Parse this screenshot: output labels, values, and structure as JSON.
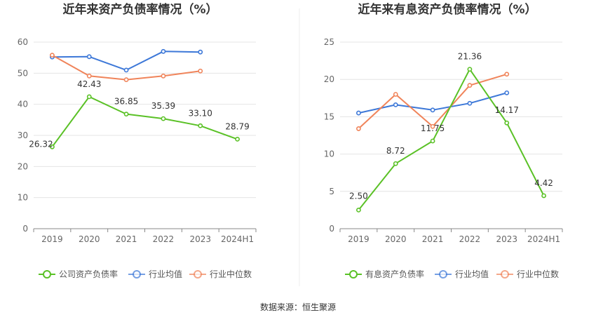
{
  "source": "数据来源：恒生聚源",
  "colors": {
    "green": "#5ac126",
    "blue": "#3d78d8",
    "orange": "#f0845a",
    "grid": "#e4e4e4",
    "axis": "#888888",
    "divider": "#eeeeee"
  },
  "chart_data": [
    {
      "type": "line",
      "title": "近年来资产负债率情况（%）",
      "categories": [
        "2019",
        "2020",
        "2021",
        "2022",
        "2023",
        "2024H1"
      ],
      "ylim": [
        0,
        60
      ],
      "yticks": [
        0,
        10,
        20,
        30,
        40,
        50,
        60
      ],
      "grid": true,
      "legend_position": "bottom",
      "series": [
        {
          "name": "公司资产负债率",
          "color": "green",
          "labeled": true,
          "values": [
            26.32,
            42.43,
            36.85,
            35.39,
            33.1,
            28.79
          ],
          "labels": [
            "26.32",
            "42.43",
            "36.85",
            "35.39",
            "33.10",
            "28.79"
          ]
        },
        {
          "name": "行业均值",
          "color": "blue",
          "labeled": false,
          "values": [
            55.2,
            55.3,
            51.0,
            57.0,
            56.8,
            null
          ]
        },
        {
          "name": "行业中位数",
          "color": "orange",
          "labeled": false,
          "values": [
            55.8,
            49.1,
            47.9,
            49.1,
            50.7,
            null
          ]
        }
      ]
    },
    {
      "type": "line",
      "title": "近年来有息资产负债率情况（%）",
      "categories": [
        "2019",
        "2020",
        "2021",
        "2022",
        "2023",
        "2024H1"
      ],
      "ylim": [
        0,
        25
      ],
      "yticks": [
        0,
        5,
        10,
        15,
        20,
        25
      ],
      "grid": true,
      "legend_position": "bottom",
      "series": [
        {
          "name": "有息资产负债率",
          "color": "green",
          "labeled": true,
          "values": [
            2.5,
            8.72,
            11.75,
            21.36,
            14.17,
            4.42
          ],
          "labels": [
            "2.50",
            "8.72",
            "11.75",
            "21.36",
            "14.17",
            "4.42"
          ]
        },
        {
          "name": "行业均值",
          "color": "blue",
          "labeled": false,
          "values": [
            15.5,
            16.6,
            15.9,
            16.8,
            18.2,
            null
          ]
        },
        {
          "name": "行业中位数",
          "color": "orange",
          "labeled": false,
          "values": [
            13.4,
            18.0,
            13.7,
            19.2,
            20.7,
            null
          ]
        }
      ]
    }
  ]
}
